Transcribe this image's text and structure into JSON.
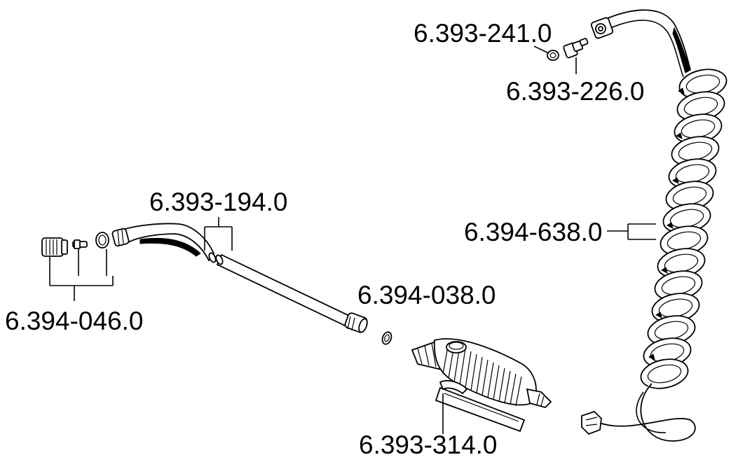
{
  "diagram": {
    "labels": {
      "fitting_seal": "6.393-241.0",
      "fitting_nipple": "6.393-226.0",
      "spray_lance": "6.393-194.0",
      "nozzle_kit": "6.394-046.0",
      "coiled_hose": "6.394-638.0",
      "o_ring": "6.394-038.0",
      "spray_gun": "6.393-314.0"
    }
  }
}
